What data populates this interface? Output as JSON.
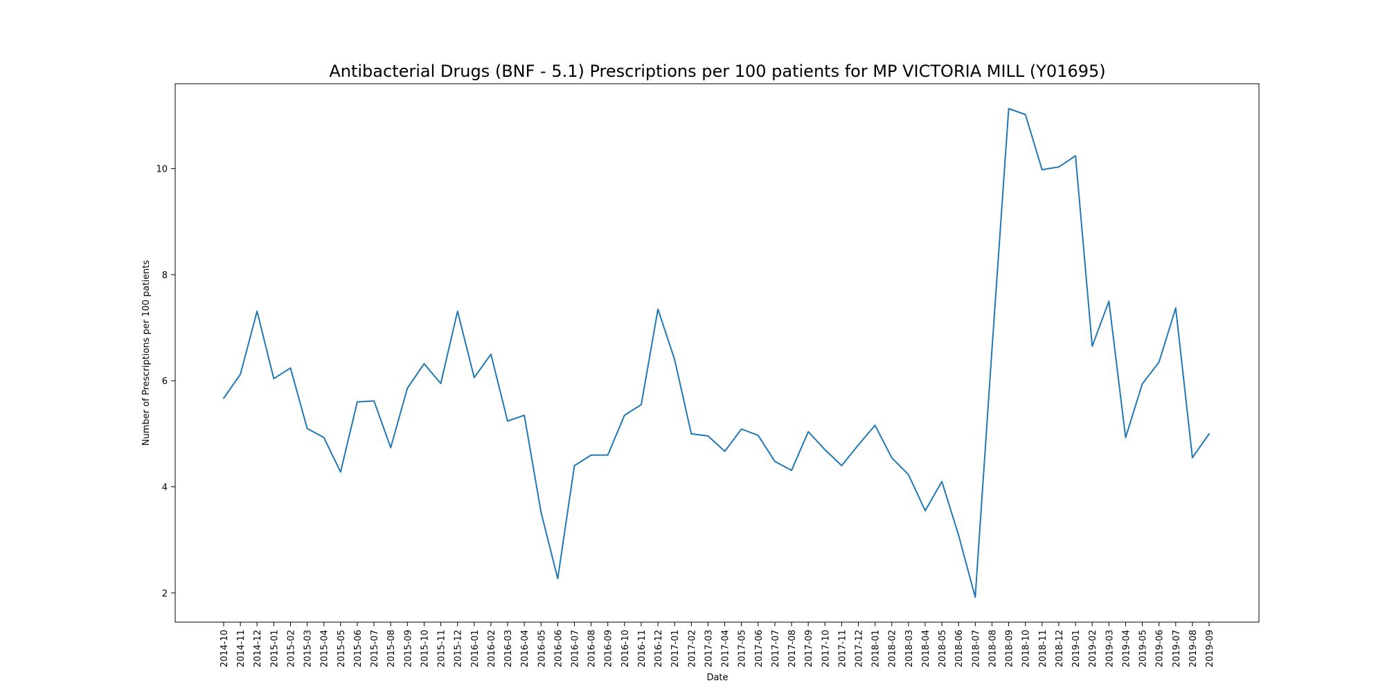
{
  "chart_data": {
    "type": "line",
    "title": "Antibacterial Drugs (BNF - 5.1) Prescriptions per 100 patients for MP VICTORIA MILL (Y01695)",
    "xlabel": "Date",
    "ylabel": "Number of Prescriptions per 100 patients",
    "ylim": [
      1.45,
      11.6
    ],
    "yticks": [
      2,
      4,
      6,
      8,
      10
    ],
    "grid": false,
    "line_color": "#1f77b4",
    "categories": [
      "2014-10",
      "2014-11",
      "2014-12",
      "2015-01",
      "2015-02",
      "2015-03",
      "2015-04",
      "2015-05",
      "2015-06",
      "2015-07",
      "2015-08",
      "2015-09",
      "2015-10",
      "2015-11",
      "2015-12",
      "2016-01",
      "2016-02",
      "2016-03",
      "2016-04",
      "2016-05",
      "2016-06",
      "2016-07",
      "2016-08",
      "2016-09",
      "2016-10",
      "2016-11",
      "2016-12",
      "2017-01",
      "2017-02",
      "2017-03",
      "2017-04",
      "2017-05",
      "2017-06",
      "2017-07",
      "2017-08",
      "2017-09",
      "2017-10",
      "2017-11",
      "2017-12",
      "2018-01",
      "2018-02",
      "2018-03",
      "2018-04",
      "2018-05",
      "2018-06",
      "2018-07",
      "2018-08",
      "2018-09",
      "2018-10",
      "2018-11",
      "2018-12",
      "2019-01",
      "2019-02",
      "2019-03",
      "2019-04",
      "2019-05",
      "2019-06",
      "2019-07",
      "2019-08",
      "2019-09"
    ],
    "values": [
      5.67,
      6.12,
      7.31,
      6.04,
      6.24,
      5.1,
      4.93,
      4.28,
      5.6,
      5.62,
      4.74,
      5.86,
      6.32,
      5.95,
      7.31,
      6.06,
      6.5,
      5.24,
      5.35,
      3.52,
      2.27,
      4.4,
      4.6,
      4.6,
      5.35,
      5.55,
      7.35,
      6.4,
      5.0,
      4.96,
      4.67,
      5.09,
      4.97,
      4.48,
      4.31,
      5.04,
      4.7,
      4.4,
      4.79,
      5.16,
      4.55,
      4.23,
      3.55,
      4.1,
      3.09,
      1.92,
      6.6,
      11.13,
      11.02,
      9.98,
      10.03,
      10.24,
      6.65,
      7.5,
      4.93,
      5.94,
      6.35,
      7.37,
      4.55,
      5.0
    ]
  }
}
